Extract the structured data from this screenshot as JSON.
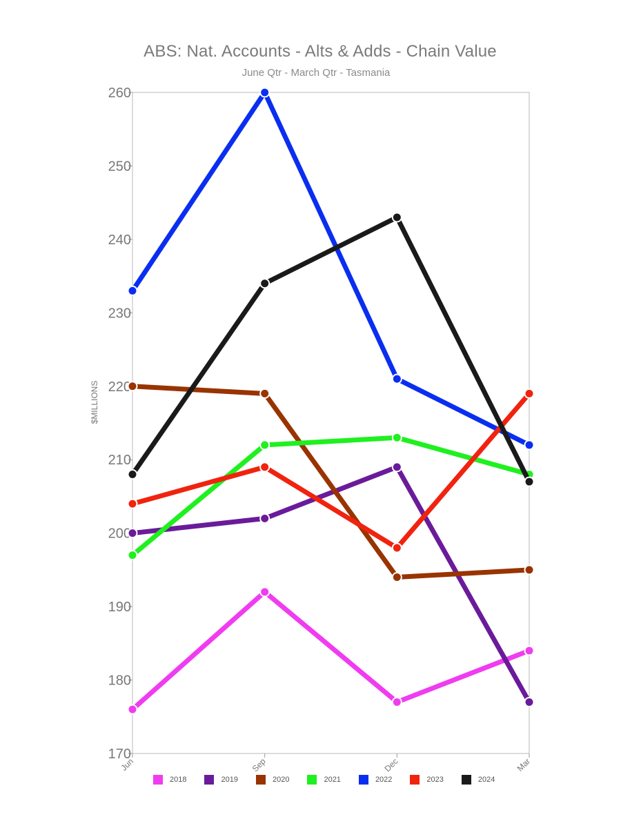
{
  "chart_data": {
    "type": "line",
    "title": "ABS: Nat. Accounts - Alts & Adds - Chain Value",
    "subtitle": "June Qtr - March Qtr - Tasmania",
    "ylabel": "$MILLIONS",
    "xlabel": "",
    "categories": [
      "Jun",
      "Sep",
      "Dec",
      "Mar"
    ],
    "ylim": [
      170,
      260
    ],
    "yticks": [
      170,
      180,
      190,
      200,
      210,
      220,
      230,
      240,
      250,
      260
    ],
    "legend_position": "bottom",
    "grid": false,
    "series": [
      {
        "name": "2018",
        "color": "#f03cf0",
        "values": [
          176,
          192,
          177,
          184
        ]
      },
      {
        "name": "2019",
        "color": "#6a1b9a",
        "values": [
          200,
          202,
          209,
          177
        ]
      },
      {
        "name": "2020",
        "color": "#993300",
        "values": [
          220,
          219,
          194,
          195
        ]
      },
      {
        "name": "2021",
        "color": "#1ff01f",
        "values": [
          197,
          212,
          213,
          208
        ]
      },
      {
        "name": "2022",
        "color": "#0a2ef0",
        "values": [
          233,
          260,
          221,
          212
        ]
      },
      {
        "name": "2023",
        "color": "#f0230f",
        "values": [
          204,
          209,
          198,
          219
        ]
      },
      {
        "name": "2024",
        "color": "#1a1a1a",
        "values": [
          208,
          234,
          243,
          207
        ]
      }
    ]
  }
}
